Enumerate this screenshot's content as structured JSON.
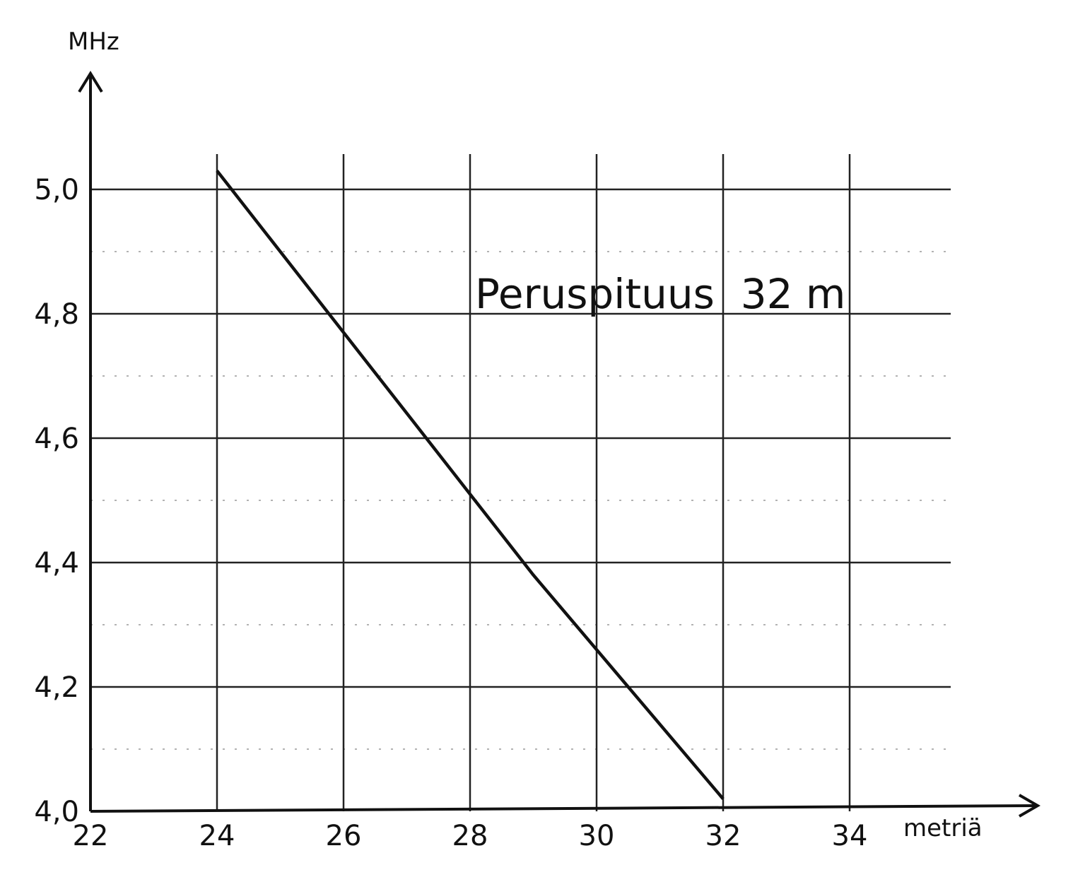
{
  "chart_data": {
    "type": "line",
    "title": "",
    "xlabel": "metriä",
    "ylabel": "MHz",
    "xlim": [
      22,
      35.5
    ],
    "ylim": [
      4.0,
      5.07
    ],
    "x_ticks": [
      "22",
      "24",
      "26",
      "28",
      "30",
      "32",
      "34"
    ],
    "y_ticks": [
      "4,0",
      "4,2",
      "4,4",
      "4,6",
      "4,8",
      "5,0"
    ],
    "grid": true,
    "annotation": "Peruspituus  32 m",
    "series": [
      {
        "x": [
          24,
          25,
          26,
          27,
          28,
          29,
          30,
          31,
          32
        ],
        "y": [
          5.03,
          4.9,
          4.77,
          4.64,
          4.51,
          4.38,
          4.26,
          4.14,
          4.02
        ]
      }
    ]
  }
}
